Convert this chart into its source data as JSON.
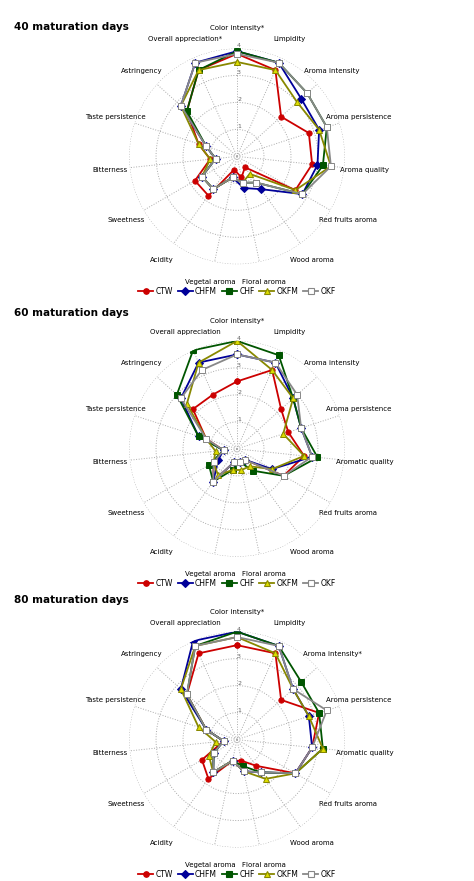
{
  "panels": [
    {
      "title": "40 maturation days",
      "categories": [
        "Color intensity*",
        "Limpidity",
        "Aroma intensity",
        "Aroma persistence",
        "Aroma quality",
        "Red fruits aroma",
        "Wood aroma",
        "Floral aroma",
        "Vegetal aroma",
        "Acidity",
        "Sweetness",
        "Bitterness",
        "Taste persistence",
        "Astringency",
        "Overall appreciation*"
      ],
      "series": {
        "CTW": [
          3.8,
          3.5,
          2.2,
          2.8,
          2.8,
          2.5,
          0.5,
          0.8,
          0.5,
          1.8,
          1.8,
          1.0,
          1.5,
          2.5,
          3.5
        ],
        "CHFM": [
          3.9,
          3.8,
          3.2,
          3.2,
          3.0,
          2.8,
          1.5,
          1.2,
          0.8,
          1.5,
          1.5,
          0.8,
          1.2,
          2.8,
          3.8
        ],
        "CHF": [
          3.9,
          3.8,
          3.5,
          3.5,
          3.2,
          2.8,
          1.2,
          1.0,
          0.8,
          1.5,
          1.5,
          0.8,
          1.2,
          2.5,
          3.5
        ],
        "OKFM": [
          3.5,
          3.5,
          3.0,
          3.2,
          3.5,
          2.5,
          0.8,
          1.0,
          0.8,
          1.5,
          1.5,
          1.0,
          1.5,
          2.8,
          3.5
        ],
        "OKF": [
          3.8,
          3.8,
          3.5,
          3.5,
          3.5,
          2.8,
          1.2,
          1.0,
          0.8,
          1.5,
          1.5,
          0.8,
          1.2,
          2.8,
          3.8
        ]
      }
    },
    {
      "title": "60 maturation days",
      "categories": [
        "Color intensity*",
        "Limpidity",
        "Aroma intensity",
        "Aroma persistence",
        "Aromatic quality",
        "Red fruits aroma",
        "Wood aroma",
        "Floral aroma",
        "Vegetal aroma",
        "Acidity",
        "Sweetness",
        "Bitterness",
        "Taste persistence",
        "Astringency",
        "Overall appreciation"
      ],
      "series": {
        "CTW": [
          2.5,
          3.2,
          2.2,
          2.0,
          2.5,
          2.0,
          0.5,
          0.5,
          0.5,
          1.5,
          1.0,
          0.5,
          1.2,
          2.2,
          2.2
        ],
        "CHFM": [
          3.5,
          3.5,
          2.8,
          2.5,
          2.8,
          1.5,
          0.5,
          0.5,
          0.5,
          1.5,
          0.8,
          0.5,
          1.5,
          2.8,
          3.5
        ],
        "CHF": [
          4.0,
          3.8,
          2.8,
          2.5,
          3.0,
          2.0,
          1.0,
          0.5,
          0.8,
          1.5,
          1.2,
          0.5,
          1.5,
          3.0,
          4.0
        ],
        "OKFM": [
          4.0,
          3.2,
          2.8,
          1.8,
          2.5,
          1.5,
          0.8,
          0.8,
          0.8,
          1.2,
          1.0,
          0.8,
          1.2,
          2.5,
          3.5
        ],
        "OKF": [
          3.5,
          3.5,
          3.0,
          2.5,
          2.8,
          2.0,
          0.5,
          0.5,
          0.5,
          1.5,
          1.0,
          0.5,
          1.2,
          2.8,
          3.2
        ]
      }
    },
    {
      "title": "80 maturation days",
      "categories": [
        "Color intensity*",
        "Limpidity",
        "Aroma intensity*",
        "Aroma persistence",
        "Aromatic quality",
        "Red fruits aroma",
        "Wood aroma",
        "Floral aroma",
        "Vegetal aroma",
        "Acidity",
        "Sweetness",
        "Bitterness",
        "Taste persistence",
        "Astringency",
        "Overall appreciation"
      ],
      "series": {
        "CTW": [
          3.5,
          3.5,
          2.2,
          3.2,
          2.8,
          2.5,
          1.2,
          0.8,
          0.8,
          1.8,
          1.5,
          0.5,
          1.2,
          2.5,
          3.5
        ],
        "CHFM": [
          4.0,
          3.8,
          2.8,
          2.8,
          2.8,
          2.5,
          1.5,
          1.2,
          0.8,
          1.5,
          1.0,
          0.5,
          1.2,
          2.8,
          4.0
        ],
        "CHF": [
          4.0,
          3.8,
          3.2,
          3.2,
          3.2,
          2.5,
          1.5,
          1.0,
          0.8,
          1.5,
          1.0,
          0.5,
          1.2,
          2.5,
          3.8
        ],
        "OKFM": [
          3.8,
          3.5,
          2.8,
          2.8,
          3.2,
          2.5,
          1.8,
          1.2,
          0.8,
          1.5,
          1.2,
          0.8,
          1.5,
          2.8,
          3.8
        ],
        "OKF": [
          3.8,
          3.8,
          2.8,
          3.5,
          2.8,
          2.5,
          1.5,
          1.2,
          0.8,
          1.5,
          1.0,
          0.5,
          1.2,
          2.5,
          3.8
        ]
      }
    }
  ],
  "series_order": [
    "CTW",
    "CHFM",
    "CHF",
    "OKFM",
    "OKF"
  ],
  "colors": {
    "CTW": "#cc0000",
    "CHFM": "#000099",
    "CHF": "#005500",
    "OKFM": "#888800",
    "OKF": "#888888"
  },
  "markers": {
    "CTW": "o",
    "CHFM": "D",
    "CHF": "s",
    "OKFM": "^",
    "OKF": "s"
  },
  "markerfacecolors": {
    "CTW": "#cc0000",
    "CHFM": "#000099",
    "CHF": "#005500",
    "OKFM": "#dddd00",
    "OKF": "#ffffff"
  },
  "ylim": [
    0,
    4
  ],
  "yticks": [
    0,
    1,
    2,
    3,
    4
  ],
  "background_color": "#ffffff"
}
